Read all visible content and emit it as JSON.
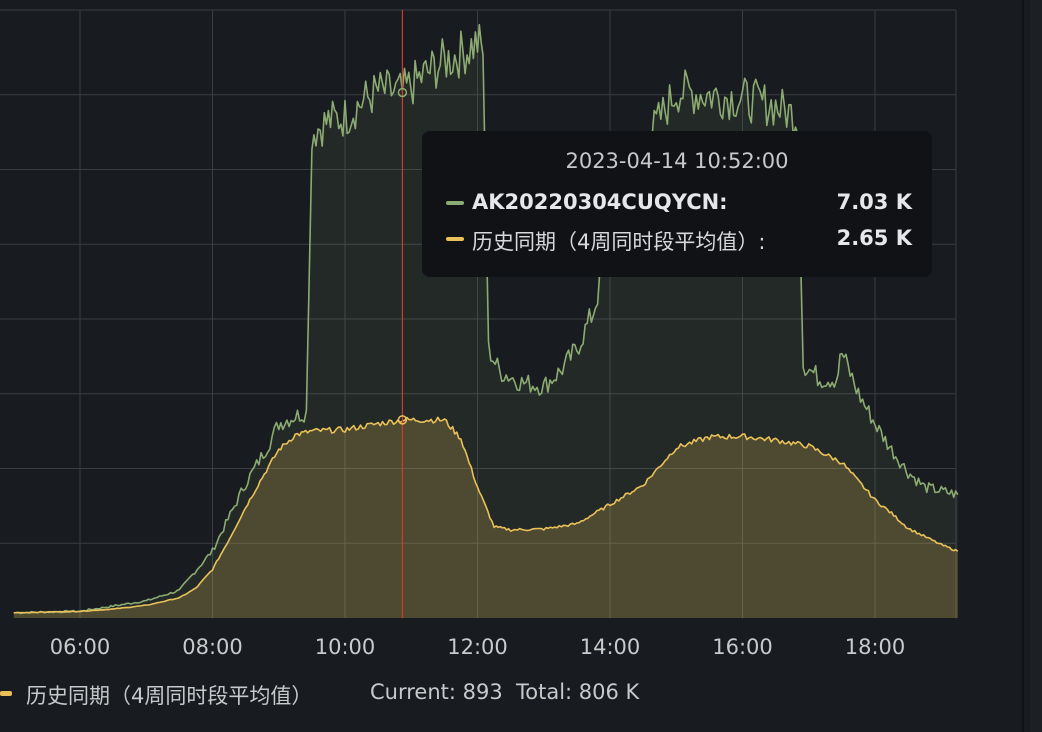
{
  "colors": {
    "series_primary": "#8cab72",
    "series_history": "#eac158",
    "grid": "#3a3d42",
    "crosshair": "#d23a2c"
  },
  "tooltip": {
    "time": "2023-04-14 10:52:00",
    "rows": [
      {
        "name": "AK20220304CUQYCN:",
        "value": "7.03 K"
      },
      {
        "name": "历史同期（4周同时段平均值）:",
        "value": "2.65 K"
      }
    ]
  },
  "legend": {
    "name": "历史同期（4周同时段平均值）",
    "current": "Current: 893",
    "total": "Total: 806 K"
  },
  "chart_data": {
    "type": "area",
    "x_ticks": [
      "06:00",
      "08:00",
      "10:00",
      "12:00",
      "14:00",
      "16:00",
      "18:00"
    ],
    "xlim": [
      "05:00",
      "19:15"
    ],
    "ylim": [
      0,
      8000
    ],
    "y_grid_step": 1000,
    "crosshair_x": "10:52",
    "grid": true,
    "series": [
      {
        "name": "AK20220304CUQYCN",
        "points": [
          [
            "05:00",
            70
          ],
          [
            "06:00",
            90
          ],
          [
            "06:30",
            160
          ],
          [
            "07:00",
            230
          ],
          [
            "07:30",
            370
          ],
          [
            "08:00",
            900
          ],
          [
            "08:30",
            1800
          ],
          [
            "08:50",
            2300
          ],
          [
            "09:00",
            2600
          ],
          [
            "09:15",
            2700
          ],
          [
            "09:25",
            2750
          ],
          [
            "09:30",
            6500
          ],
          [
            "09:45",
            6650
          ],
          [
            "10:00",
            6700
          ],
          [
            "10:15",
            6900
          ],
          [
            "10:30",
            7050
          ],
          [
            "10:52",
            7030
          ],
          [
            "11:15",
            7300
          ],
          [
            "11:30",
            7450
          ],
          [
            "11:45",
            7550
          ],
          [
            "12:00",
            7700
          ],
          [
            "12:05",
            7600
          ],
          [
            "12:10",
            3600
          ],
          [
            "12:20",
            3300
          ],
          [
            "12:40",
            3150
          ],
          [
            "13:00",
            3100
          ],
          [
            "13:15",
            3300
          ],
          [
            "13:30",
            3600
          ],
          [
            "13:45",
            4100
          ],
          [
            "14:00",
            5000
          ],
          [
            "14:30",
            6300
          ],
          [
            "15:00",
            7050
          ],
          [
            "15:30",
            7000
          ],
          [
            "16:00",
            6950
          ],
          [
            "16:30",
            6850
          ],
          [
            "16:50",
            6700
          ],
          [
            "16:55",
            3400
          ],
          [
            "17:10",
            3200
          ],
          [
            "17:25",
            3200
          ],
          [
            "17:30",
            3550
          ],
          [
            "17:45",
            3000
          ],
          [
            "18:00",
            2600
          ],
          [
            "18:15",
            2250
          ],
          [
            "18:30",
            1950
          ],
          [
            "18:45",
            1750
          ],
          [
            "19:00",
            1700
          ],
          [
            "19:15",
            1650
          ]
        ]
      },
      {
        "name": "历史同期（4周同时段平均值）",
        "points": [
          [
            "05:00",
            70
          ],
          [
            "06:00",
            90
          ],
          [
            "06:30",
            120
          ],
          [
            "07:00",
            170
          ],
          [
            "07:30",
            270
          ],
          [
            "07:45",
            400
          ],
          [
            "08:00",
            650
          ],
          [
            "08:15",
            1050
          ],
          [
            "08:30",
            1480
          ],
          [
            "08:45",
            1880
          ],
          [
            "09:00",
            2250
          ],
          [
            "09:15",
            2450
          ],
          [
            "09:30",
            2500
          ],
          [
            "10:00",
            2520
          ],
          [
            "10:30",
            2600
          ],
          [
            "10:52",
            2650
          ],
          [
            "11:30",
            2650
          ],
          [
            "11:45",
            2400
          ],
          [
            "12:00",
            1750
          ],
          [
            "12:15",
            1220
          ],
          [
            "12:30",
            1180
          ],
          [
            "13:00",
            1190
          ],
          [
            "13:30",
            1260
          ],
          [
            "14:00",
            1520
          ],
          [
            "14:30",
            1780
          ],
          [
            "15:00",
            2280
          ],
          [
            "15:30",
            2420
          ],
          [
            "16:00",
            2430
          ],
          [
            "16:30",
            2380
          ],
          [
            "17:00",
            2300
          ],
          [
            "17:30",
            2080
          ],
          [
            "18:00",
            1580
          ],
          [
            "18:15",
            1400
          ],
          [
            "18:30",
            1200
          ],
          [
            "19:00",
            980
          ],
          [
            "19:15",
            893
          ]
        ]
      }
    ]
  }
}
